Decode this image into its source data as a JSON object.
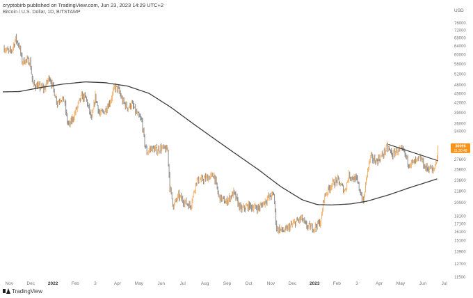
{
  "header": {
    "text": "cryptobirb published on TradingView.com, Jun 23, 2023 14:29 UTC+2"
  },
  "footer": {
    "brand": "TradingView"
  },
  "chart_data": {
    "type": "line",
    "title": "Bitcoin / U.S. Dollar, 1D, BITSTAMP",
    "currency_label": "USD",
    "y_scale": "log",
    "ylim": [
      11500,
      82000
    ],
    "y_ticks": [
      11500,
      12700,
      13900,
      15100,
      16100,
      17100,
      18100,
      20000,
      21800,
      23600,
      25600,
      27600,
      29000,
      31000,
      34000,
      36000,
      39000,
      42000,
      45000,
      48000,
      52000,
      56000,
      60000,
      64000,
      68000,
      72000,
      76000
    ],
    "y_tick_labels": [
      "11500",
      "12700",
      "13900",
      "15100",
      "16100",
      "17100",
      "18100",
      "20000",
      "21800",
      "23600",
      "25600",
      "27600",
      "",
      "",
      "34000",
      "36000",
      "39000",
      "42000",
      "45000",
      "48000",
      "52000",
      "56000",
      "60000",
      "64000",
      "68000",
      "72000",
      "76000"
    ],
    "x_ticks": [
      "2021-11-01",
      "2021-12-01",
      "2022-01-01",
      "2022-02-01",
      "2022-03-01",
      "2022-04-01",
      "2022-05-01",
      "2022-06-01",
      "2022-07-01",
      "2022-08-01",
      "2022-09-01",
      "2022-10-01",
      "2022-11-01",
      "2022-12-01",
      "2023-01-01",
      "2023-02-01",
      "2023-03-01",
      "2023-04-01",
      "2023-05-01",
      "2023-06-01",
      "2023-07-01"
    ],
    "x_tick_labels": [
      "Nov",
      "Dec",
      "2022",
      "Feb",
      "3",
      "Apr",
      "May",
      "Jun",
      "Jul",
      "Aug",
      "Sep",
      "Oct",
      "Nov",
      "Dec",
      "2023",
      "Feb",
      "3",
      "Apr",
      "May",
      "Jun",
      "Jul"
    ],
    "xlim": [
      "2021-10-23",
      "2023-07-07"
    ],
    "series": [
      {
        "role": "price",
        "points": [
          [
            "2021-10-25",
            63000
          ],
          [
            "2021-11-01",
            61000
          ],
          [
            "2021-11-05",
            62500
          ],
          [
            "2021-11-10",
            67500
          ],
          [
            "2021-11-15",
            64000
          ],
          [
            "2021-11-19",
            57000
          ],
          [
            "2021-11-24",
            57500
          ],
          [
            "2021-11-30",
            57000
          ],
          [
            "2021-12-04",
            48000
          ],
          [
            "2021-12-10",
            47500
          ],
          [
            "2021-12-16",
            47000
          ],
          [
            "2021-12-20",
            46500
          ],
          [
            "2021-12-27",
            51000
          ],
          [
            "2022-01-01",
            47000
          ],
          [
            "2022-01-07",
            42000
          ],
          [
            "2022-01-12",
            43500
          ],
          [
            "2022-01-17",
            42500
          ],
          [
            "2022-01-21",
            36500
          ],
          [
            "2022-01-24",
            35500
          ],
          [
            "2022-01-31",
            38500
          ],
          [
            "2022-02-07",
            42500
          ],
          [
            "2022-02-10",
            44000
          ],
          [
            "2022-02-16",
            43500
          ],
          [
            "2022-02-24",
            37000
          ],
          [
            "2022-03-01",
            44000
          ],
          [
            "2022-03-07",
            38500
          ],
          [
            "2022-03-14",
            39500
          ],
          [
            "2022-03-22",
            42500
          ],
          [
            "2022-03-28",
            47000
          ],
          [
            "2022-04-02",
            46500
          ],
          [
            "2022-04-08",
            42500
          ],
          [
            "2022-04-15",
            40500
          ],
          [
            "2022-04-21",
            41500
          ],
          [
            "2022-04-27",
            39000
          ],
          [
            "2022-05-05",
            36500
          ],
          [
            "2022-05-09",
            31000
          ],
          [
            "2022-05-12",
            29000
          ],
          [
            "2022-05-18",
            30000
          ],
          [
            "2022-05-25",
            29500
          ],
          [
            "2022-06-01",
            30000
          ],
          [
            "2022-06-10",
            29500
          ],
          [
            "2022-06-13",
            22500
          ],
          [
            "2022-06-18",
            19500
          ],
          [
            "2022-06-25",
            21000
          ],
          [
            "2022-07-05",
            20000
          ],
          [
            "2022-07-12",
            19500
          ],
          [
            "2022-07-20",
            23500
          ],
          [
            "2022-07-30",
            23800
          ],
          [
            "2022-08-14",
            24500
          ],
          [
            "2022-08-20",
            21000
          ],
          [
            "2022-08-30",
            20000
          ],
          [
            "2022-09-10",
            21500
          ],
          [
            "2022-09-20",
            19000
          ],
          [
            "2022-10-01",
            19500
          ],
          [
            "2022-10-15",
            19200
          ],
          [
            "2022-10-29",
            20800
          ],
          [
            "2022-11-05",
            21300
          ],
          [
            "2022-11-09",
            16500
          ],
          [
            "2022-11-20",
            16200
          ],
          [
            "2022-12-01",
            17000
          ],
          [
            "2022-12-14",
            17800
          ],
          [
            "2022-12-20",
            16800
          ],
          [
            "2022-12-31",
            16600
          ],
          [
            "2023-01-10",
            17400
          ],
          [
            "2023-01-14",
            20800
          ],
          [
            "2023-01-25",
            23000
          ],
          [
            "2023-02-02",
            23600
          ],
          [
            "2023-02-12",
            21800
          ],
          [
            "2023-02-18",
            24500
          ],
          [
            "2023-03-01",
            23600
          ],
          [
            "2023-03-10",
            20000
          ],
          [
            "2023-03-15",
            24800
          ],
          [
            "2023-03-20",
            28000
          ],
          [
            "2023-03-28",
            27200
          ],
          [
            "2023-04-05",
            28300
          ],
          [
            "2023-04-12",
            30200
          ],
          [
            "2023-04-20",
            28500
          ],
          [
            "2023-04-26",
            29500
          ],
          [
            "2023-05-05",
            29300
          ],
          [
            "2023-05-12",
            26800
          ],
          [
            "2023-05-20",
            26900
          ],
          [
            "2023-05-29",
            27800
          ],
          [
            "2023-06-05",
            25800
          ],
          [
            "2023-06-12",
            25900
          ],
          [
            "2023-06-15",
            25100
          ],
          [
            "2023-06-19",
            26800
          ],
          [
            "2023-06-21",
            28300
          ],
          [
            "2023-06-22",
            30000
          ]
        ]
      },
      {
        "role": "moving-average",
        "points": [
          [
            "2021-10-23",
            45500
          ],
          [
            "2021-11-15",
            45600
          ],
          [
            "2021-12-15",
            47000
          ],
          [
            "2022-01-15",
            48200
          ],
          [
            "2022-02-15",
            49000
          ],
          [
            "2022-03-15",
            48700
          ],
          [
            "2022-04-15",
            47500
          ],
          [
            "2022-05-15",
            45000
          ],
          [
            "2022-06-15",
            40500
          ],
          [
            "2022-07-15",
            36000
          ],
          [
            "2022-08-15",
            32000
          ],
          [
            "2022-09-15",
            28500
          ],
          [
            "2022-10-15",
            25500
          ],
          [
            "2022-11-15",
            22500
          ],
          [
            "2022-12-15",
            20400
          ],
          [
            "2023-01-05",
            19700
          ],
          [
            "2023-01-25",
            19650
          ],
          [
            "2023-02-20",
            19800
          ],
          [
            "2023-03-15",
            20200
          ],
          [
            "2023-04-15",
            21200
          ],
          [
            "2023-05-15",
            22400
          ],
          [
            "2023-06-05",
            23200
          ],
          [
            "2023-06-22",
            23900
          ]
        ]
      },
      {
        "role": "trendline",
        "points": [
          [
            "2023-04-14",
            30800
          ],
          [
            "2023-06-22",
            27300
          ]
        ]
      }
    ],
    "last_price": {
      "value": "30096",
      "countdown": "11:30:48"
    },
    "colors": {
      "bearish": "#8a8a8a",
      "bullish": "#f5b26b",
      "ma": "#3d3d3d",
      "trendline": "#3d3d3d",
      "badge": "#f7931a"
    },
    "grid": false,
    "legend": "none"
  }
}
